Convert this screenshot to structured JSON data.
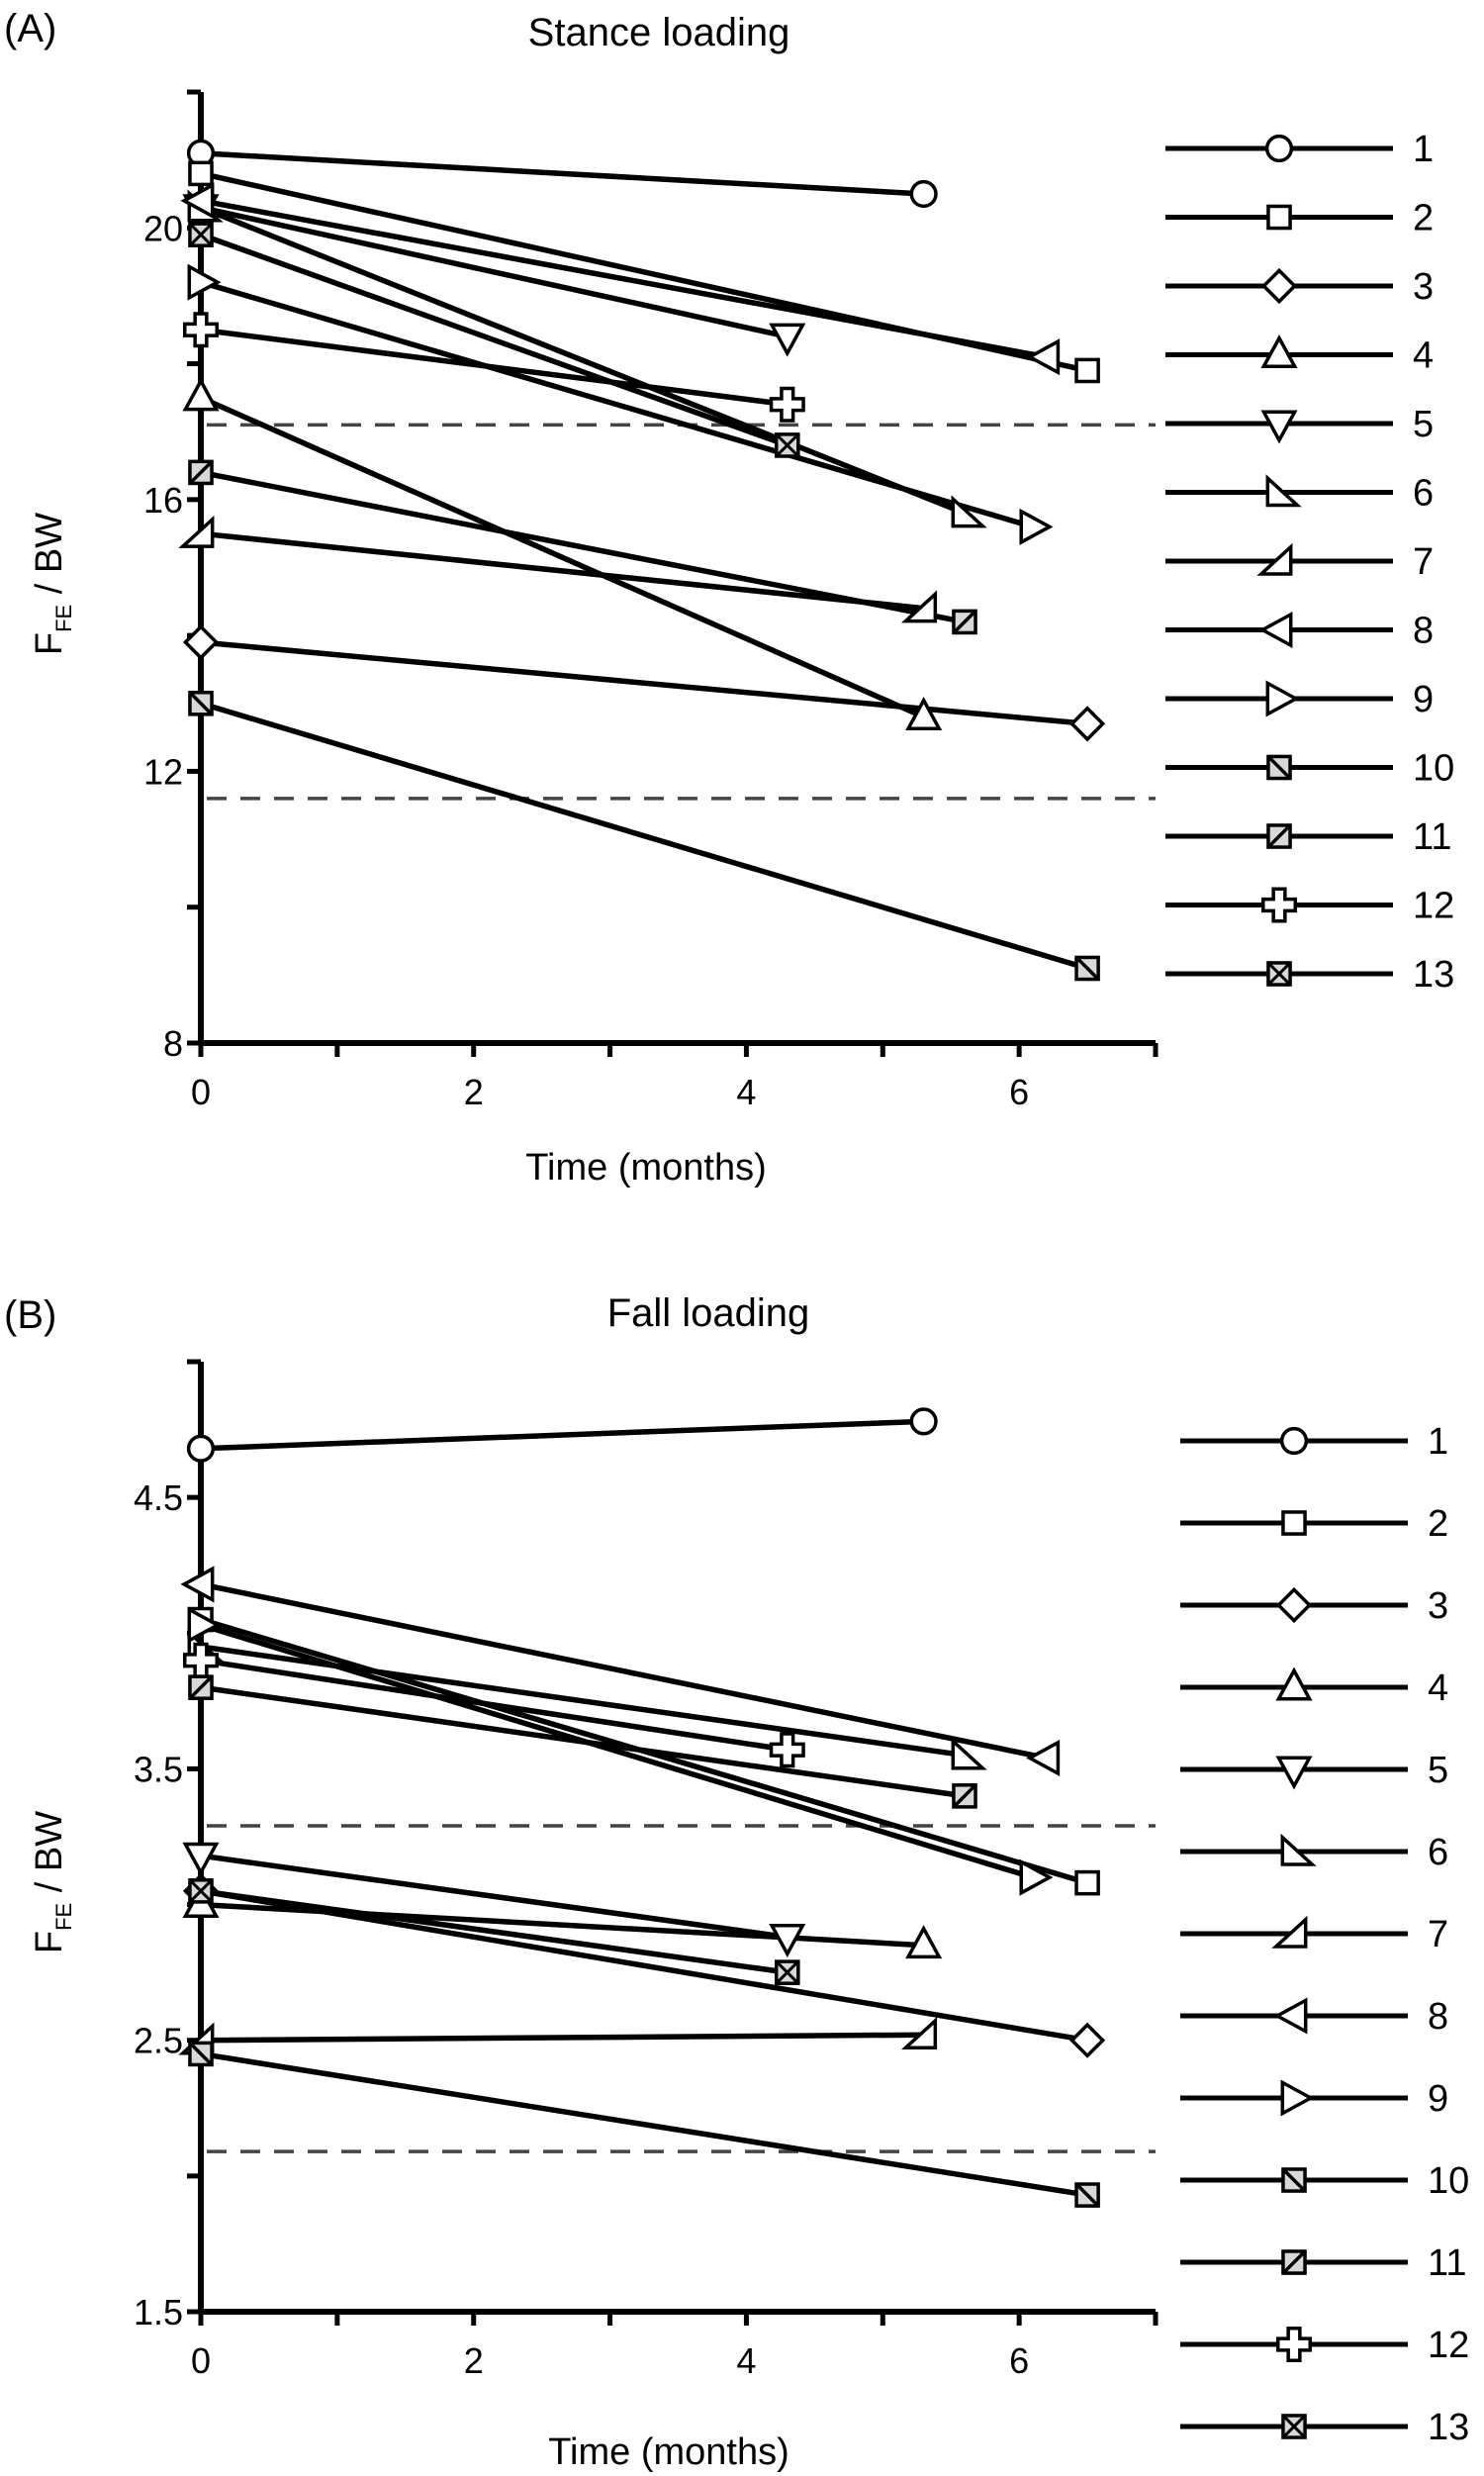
{
  "chart_data": [
    {
      "type": "line",
      "panel_label": "(A)",
      "title": "Stance loading",
      "xlabel": "Time (months)",
      "ylabel_main": "F",
      "ylabel_sub": "FE",
      "ylabel_rest": " / BW",
      "xlim": [
        0,
        7
      ],
      "ylim": [
        8,
        22
      ],
      "xticks": [
        0,
        1,
        2,
        3,
        4,
        5,
        6,
        7
      ],
      "xtick_labels": [
        "0",
        "2",
        "4",
        "6"
      ],
      "xtick_label_values": [
        0,
        2,
        4,
        6
      ],
      "yticks": [
        8,
        10,
        12,
        14,
        16,
        18,
        20,
        22
      ],
      "ytick_labels": [
        "8",
        "12",
        "16",
        "20"
      ],
      "ytick_label_values": [
        8,
        12,
        16,
        20
      ],
      "reference_lines": [
        17.1,
        11.6
      ],
      "series": [
        {
          "name": "1",
          "marker": "circle",
          "x": [
            0,
            5.3
          ],
          "y": [
            21.1,
            20.5
          ]
        },
        {
          "name": "2",
          "marker": "square",
          "x": [
            0,
            6.5
          ],
          "y": [
            20.8,
            17.9
          ]
        },
        {
          "name": "3",
          "marker": "diamond",
          "x": [
            0,
            6.5
          ],
          "y": [
            13.9,
            12.7
          ]
        },
        {
          "name": "4",
          "marker": "triangle-up",
          "x": [
            0,
            5.3
          ],
          "y": [
            17.5,
            12.8
          ]
        },
        {
          "name": "5",
          "marker": "triangle-down",
          "x": [
            0,
            4.3
          ],
          "y": [
            20.3,
            18.4
          ]
        },
        {
          "name": "6",
          "marker": "right-tri-a",
          "x": [
            0,
            5.6
          ],
          "y": [
            20.3,
            15.8
          ]
        },
        {
          "name": "7",
          "marker": "right-tri-b",
          "x": [
            0,
            5.3
          ],
          "y": [
            15.5,
            14.4
          ]
        },
        {
          "name": "8",
          "marker": "triangle-left",
          "x": [
            0,
            6.2
          ],
          "y": [
            20.4,
            18.1
          ]
        },
        {
          "name": "9",
          "marker": "triangle-right",
          "x": [
            0,
            6.1
          ],
          "y": [
            19.2,
            15.6
          ]
        },
        {
          "name": "10",
          "marker": "square-slash-back",
          "x": [
            0,
            6.5
          ],
          "y": [
            13.0,
            9.1
          ]
        },
        {
          "name": "11",
          "marker": "square-slash",
          "x": [
            0,
            5.6
          ],
          "y": [
            16.4,
            14.2
          ]
        },
        {
          "name": "12",
          "marker": "plus",
          "x": [
            0,
            4.3
          ],
          "y": [
            18.5,
            17.4
          ]
        },
        {
          "name": "13",
          "marker": "square-cross",
          "x": [
            0,
            4.3
          ],
          "y": [
            19.9,
            16.8
          ]
        }
      ],
      "legend_position": "right"
    },
    {
      "type": "line",
      "panel_label": "(B)",
      "title": "Fall loading",
      "xlabel": "Time (months)",
      "ylabel_main": "F",
      "ylabel_sub": "FE",
      "ylabel_rest": " / BW",
      "xlim": [
        0,
        7
      ],
      "ylim": [
        1.5,
        5.0
      ],
      "xticks": [
        0,
        1,
        2,
        3,
        4,
        5,
        6,
        7
      ],
      "xtick_labels": [
        "0",
        "2",
        "4",
        "6"
      ],
      "xtick_label_values": [
        0,
        2,
        4,
        6
      ],
      "yticks": [
        1.5,
        2.0,
        2.5,
        3.0,
        3.5,
        4.0,
        4.5,
        5.0
      ],
      "ytick_labels": [
        "1.5",
        "2.5",
        "3.5",
        "4.5"
      ],
      "ytick_label_values": [
        1.5,
        2.5,
        3.5,
        4.5
      ],
      "reference_lines": [
        3.29,
        2.09
      ],
      "series": [
        {
          "name": "1",
          "marker": "circle",
          "x": [
            0,
            5.3
          ],
          "y": [
            4.68,
            4.78
          ]
        },
        {
          "name": "2",
          "marker": "square",
          "x": [
            0,
            6.5
          ],
          "y": [
            4.05,
            3.08
          ]
        },
        {
          "name": "3",
          "marker": "diamond",
          "x": [
            0,
            6.5
          ],
          "y": [
            3.05,
            2.5
          ]
        },
        {
          "name": "4",
          "marker": "triangle-up",
          "x": [
            0,
            5.3
          ],
          "y": [
            3.0,
            2.85
          ]
        },
        {
          "name": "5",
          "marker": "triangle-down",
          "x": [
            0,
            4.3
          ],
          "y": [
            3.18,
            2.88
          ]
        },
        {
          "name": "6",
          "marker": "right-tri-a",
          "x": [
            0,
            5.6
          ],
          "y": [
            3.95,
            3.55
          ]
        },
        {
          "name": "7",
          "marker": "right-tri-b",
          "x": [
            0,
            5.3
          ],
          "y": [
            2.5,
            2.52
          ]
        },
        {
          "name": "8",
          "marker": "triangle-left",
          "x": [
            0,
            6.2
          ],
          "y": [
            4.18,
            3.54
          ]
        },
        {
          "name": "9",
          "marker": "triangle-right",
          "x": [
            0,
            6.1
          ],
          "y": [
            4.03,
            3.1
          ]
        },
        {
          "name": "10",
          "marker": "square-slash-back",
          "x": [
            0,
            6.5
          ],
          "y": [
            2.45,
            1.93
          ]
        },
        {
          "name": "11",
          "marker": "square-slash",
          "x": [
            0,
            5.6
          ],
          "y": [
            3.8,
            3.4
          ]
        },
        {
          "name": "12",
          "marker": "plus",
          "x": [
            0,
            4.3
          ],
          "y": [
            3.9,
            3.57
          ]
        },
        {
          "name": "13",
          "marker": "square-cross",
          "x": [
            0,
            4.3
          ],
          "y": [
            3.05,
            2.75
          ]
        }
      ],
      "legend_position": "right"
    }
  ]
}
